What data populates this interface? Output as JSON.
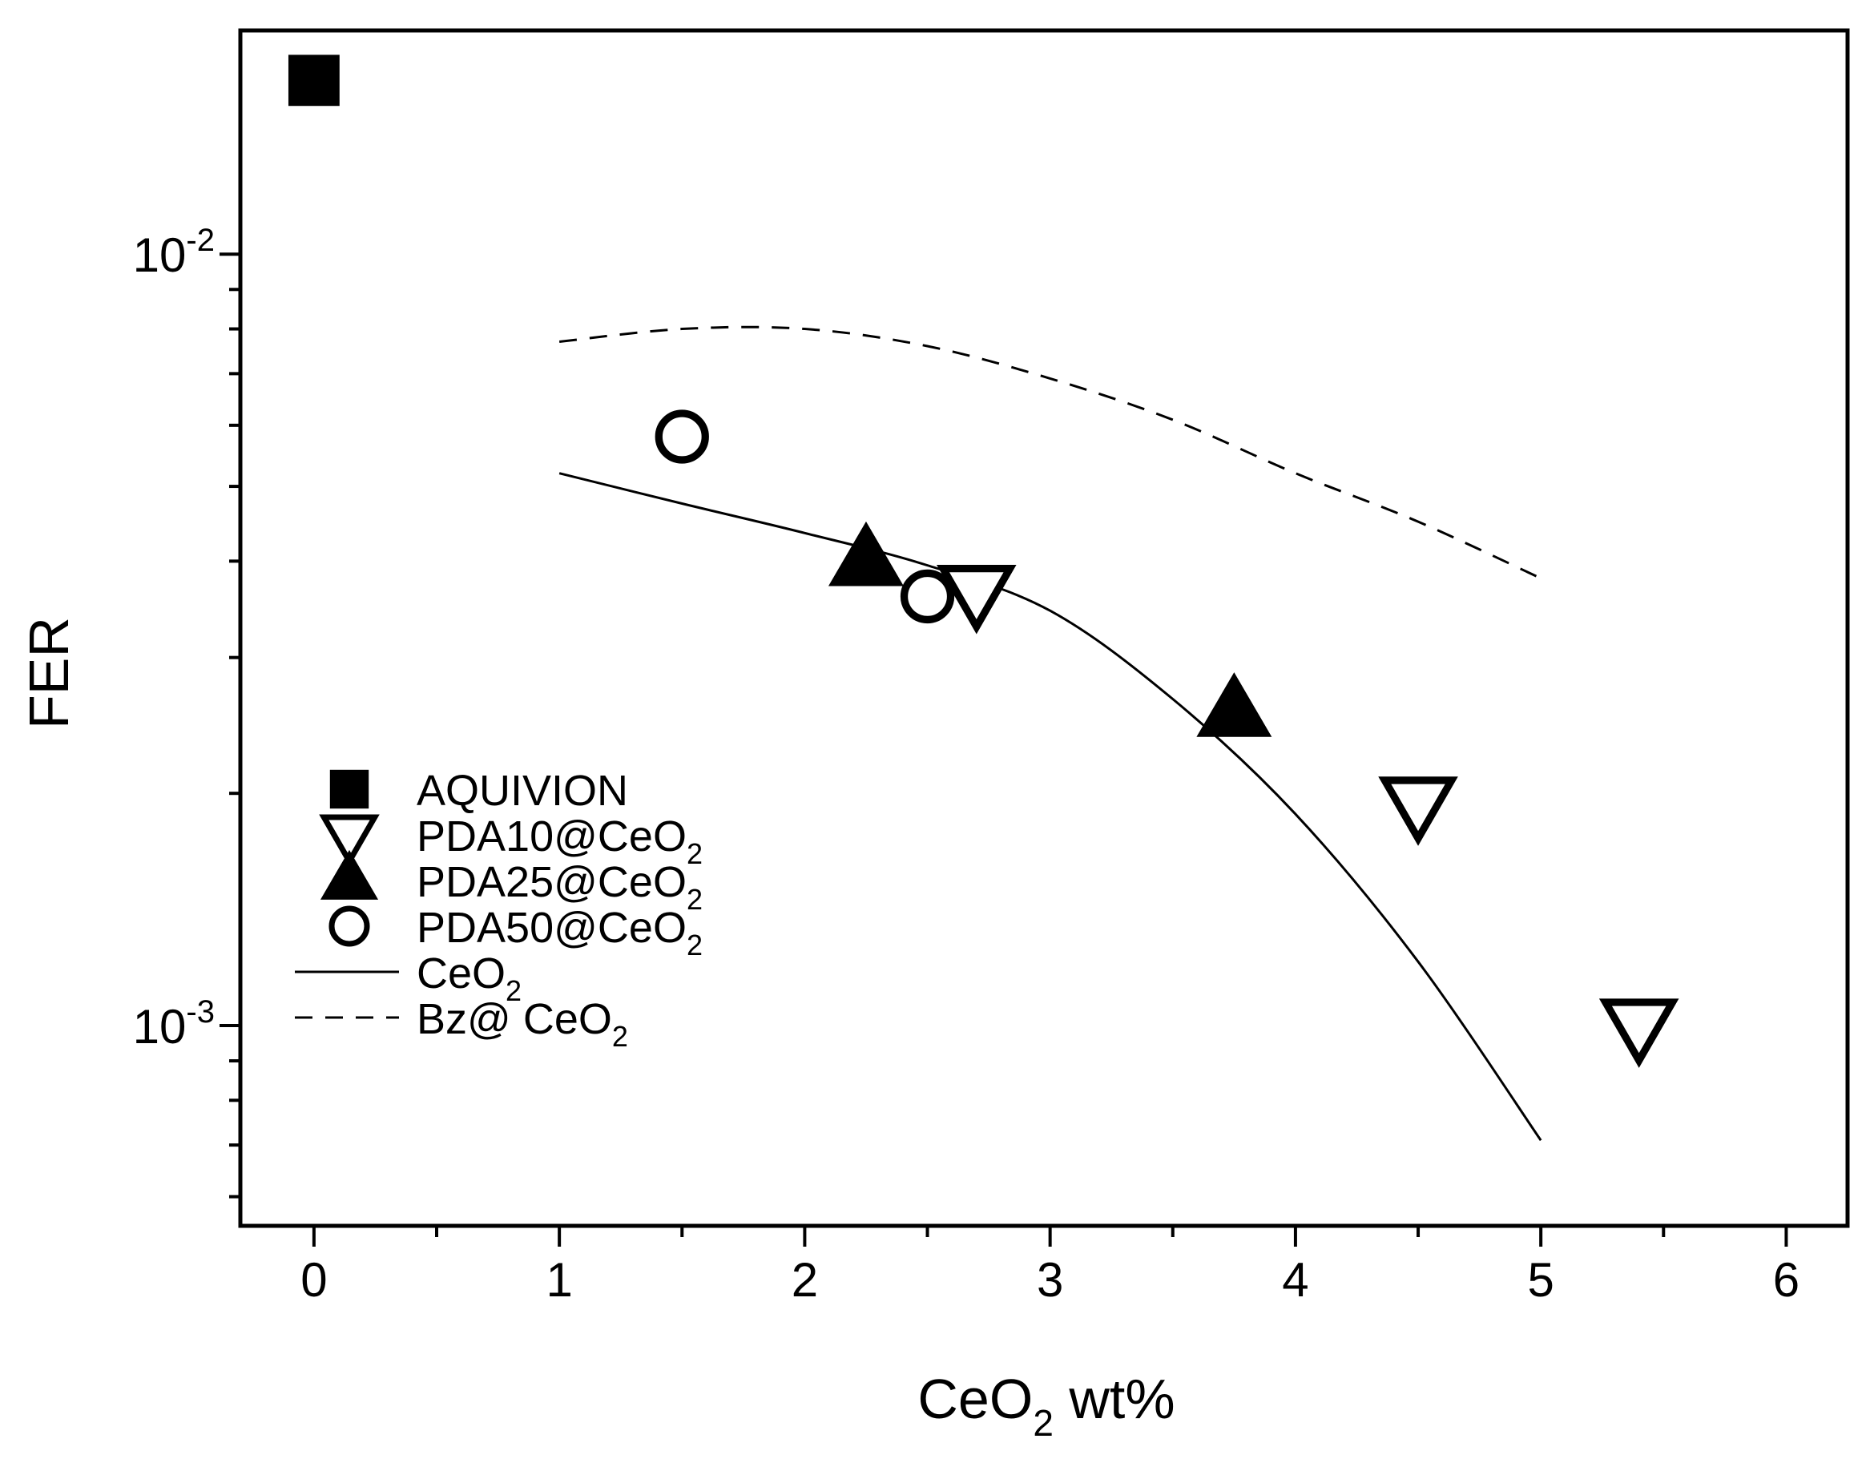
{
  "chart_data": {
    "type": "scatter",
    "title": "",
    "xlabel": {
      "main": "CeO",
      "sub": "2",
      "rest": " wt%"
    },
    "ylabel": "FER",
    "xlim": [
      -0.3,
      6.25
    ],
    "ylim": [
      0.00055,
      0.0195
    ],
    "yscale": "log",
    "x_ticks": [
      0,
      1,
      2,
      3,
      4,
      5,
      6
    ],
    "x_tick_labels": [
      "0",
      "1",
      "2",
      "3",
      "4",
      "5",
      "6"
    ],
    "y_major_ticks": [
      {
        "value": 0.01,
        "base": "10",
        "exp": "-2"
      },
      {
        "value": 0.001,
        "base": "10",
        "exp": "-3"
      }
    ],
    "y_minor_ticks": [
      0.0006,
      0.0007,
      0.0008,
      0.0009,
      0.002,
      0.003,
      0.004,
      0.005,
      0.006,
      0.007,
      0.008,
      0.009
    ],
    "legend_position": "bottom-left",
    "series": [
      {
        "name": "AQUIVION",
        "label_main": "AQUIVION",
        "label_sub": "",
        "marker": "filled-square",
        "points": [
          [
            0,
            0.0168
          ]
        ]
      },
      {
        "name": "PDA10@CeO2",
        "label_main": "PDA10@CeO",
        "label_sub": "2",
        "marker": "open-down-triangle",
        "points": [
          [
            2.7,
            0.00365
          ],
          [
            4.5,
            0.00194
          ],
          [
            5.4,
            0.001
          ]
        ]
      },
      {
        "name": "PDA25@CeO2",
        "label_main": "PDA25@CeO",
        "label_sub": "2",
        "marker": "filled-up-triangle",
        "points": [
          [
            2.25,
            0.004
          ],
          [
            3.75,
            0.00255
          ]
        ]
      },
      {
        "name": "PDA50@CeO2",
        "label_main": "PDA50@CeO",
        "label_sub": "2",
        "marker": "open-circle",
        "points": [
          [
            1.5,
            0.0058
          ],
          [
            2.5,
            0.0036
          ]
        ]
      },
      {
        "name": "CeO2",
        "label_main": "CeO",
        "label_sub": "2",
        "marker": "solid-line",
        "points": [
          [
            1.0,
            0.0052
          ],
          [
            1.5,
            0.00475
          ],
          [
            2.0,
            0.00435
          ],
          [
            2.5,
            0.00395
          ],
          [
            3.0,
            0.00345
          ],
          [
            3.5,
            0.00265
          ],
          [
            4.0,
            0.00188
          ],
          [
            4.5,
            0.00121
          ],
          [
            5.0,
            0.00071
          ]
        ]
      },
      {
        "name": "Bz@ CeO2",
        "label_main": "Bz@ CeO",
        "label_sub": "2",
        "marker": "dashed-line",
        "points": [
          [
            1.0,
            0.0077
          ],
          [
            1.5,
            0.008
          ],
          [
            2.0,
            0.008
          ],
          [
            2.5,
            0.0076
          ],
          [
            3.0,
            0.0069
          ],
          [
            3.5,
            0.0061
          ],
          [
            4.0,
            0.0052
          ],
          [
            4.5,
            0.0045
          ],
          [
            5.0,
            0.0038
          ]
        ]
      }
    ]
  }
}
